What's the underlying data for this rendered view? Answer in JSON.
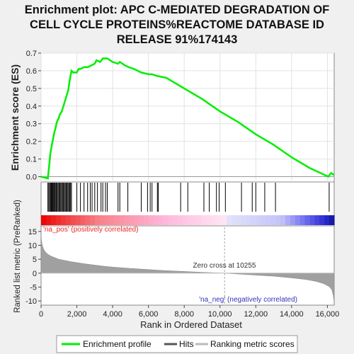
{
  "chart_data": {
    "type": "line",
    "title_lines": [
      "Enrichment plot: APC C-MEDIATED DEGRADATION OF",
      "CELL CYCLE PROTEINS%REACTOME DATABASE ID",
      "RELEASE 91%174143"
    ],
    "es_panel": {
      "ylabel": "Enrichment score (ES)",
      "ylim": [
        -0.03,
        0.7
      ],
      "yticks": [
        "0.0",
        "0.1",
        "0.2",
        "0.3",
        "0.4",
        "0.5",
        "0.6",
        "0.7"
      ],
      "ytick_values": [
        0.0,
        0.1,
        0.2,
        0.3,
        0.4,
        0.5,
        0.6,
        0.7
      ],
      "series": [
        {
          "name": "Enrichment profile",
          "color": "#00ee00",
          "x": [
            0,
            380,
            420,
            470,
            520,
            570,
            620,
            680,
            740,
            800,
            860,
            920,
            980,
            1040,
            1100,
            1160,
            1220,
            1280,
            1340,
            1400,
            1460,
            1520,
            1580,
            1640,
            1700,
            1800,
            2000,
            2100,
            2200,
            2400,
            2600,
            2800,
            3000,
            3100,
            3300,
            3450,
            3550,
            3700,
            4000,
            4300,
            4400,
            4700,
            4900,
            5200,
            5600,
            6000,
            6200,
            6500,
            7000,
            8000,
            9000,
            10000,
            11000,
            12000,
            13000,
            14000,
            15000,
            16050,
            16200,
            16380
          ],
          "values": [
            0.0,
            -0.01,
            0.03,
            0.08,
            0.13,
            0.16,
            0.19,
            0.22,
            0.25,
            0.27,
            0.3,
            0.32,
            0.33,
            0.35,
            0.36,
            0.37,
            0.39,
            0.41,
            0.43,
            0.45,
            0.47,
            0.49,
            0.53,
            0.57,
            0.6,
            0.59,
            0.59,
            0.61,
            0.61,
            0.62,
            0.62,
            0.63,
            0.64,
            0.66,
            0.65,
            0.67,
            0.67,
            0.67,
            0.65,
            0.64,
            0.65,
            0.63,
            0.62,
            0.61,
            0.59,
            0.58,
            0.58,
            0.57,
            0.56,
            0.5,
            0.44,
            0.37,
            0.31,
            0.24,
            0.18,
            0.11,
            0.05,
            0.0,
            0.02,
            0.01
          ]
        }
      ]
    },
    "hits_panel": {
      "legend_label": "Hits",
      "hit_positions": [
        380,
        430,
        480,
        530,
        570,
        610,
        640,
        680,
        720,
        760,
        800,
        850,
        900,
        950,
        1000,
        1050,
        1100,
        1150,
        1200,
        1250,
        1300,
        1350,
        1400,
        1450,
        1500,
        1550,
        1600,
        1650,
        1700,
        2000,
        2200,
        2400,
        2600,
        2750,
        2850,
        3000,
        3150,
        3350,
        3450,
        3600,
        3700,
        4300,
        4400,
        4850,
        5600,
        5950,
        6100,
        6200,
        6500,
        6550,
        7800,
        8200,
        9100,
        9400,
        9800,
        9950,
        10300,
        11200,
        11800,
        12000,
        12500,
        13100,
        16100
      ]
    },
    "metric_panel": {
      "ylabel": "Ranked list metric (PreRanked)",
      "xlabel": "Rank in Ordered Dataset",
      "legend_label": "Ranking metric scores",
      "ylim": [
        -11.5,
        17
      ],
      "yticks": [
        "15",
        "10",
        "5",
        "0",
        "-5",
        "-10"
      ],
      "ytick_values": [
        15,
        10,
        5,
        0,
        -5,
        -10
      ],
      "xlim": [
        0,
        16380
      ],
      "xticks": [
        "0",
        "2,000",
        "4,000",
        "6,000",
        "8,000",
        "10,000",
        "12,000",
        "14,000",
        "16,000"
      ],
      "xtick_values": [
        0,
        2000,
        4000,
        6000,
        8000,
        10000,
        12000,
        14000,
        16000
      ],
      "zero_cross_label": "Zero cross at 10255",
      "zero_cross": 10255,
      "pos_label": "'na_pos' (positively correlated)",
      "neg_label": "'na_neg' (negatively correlated)",
      "curve": {
        "x": [
          0,
          20,
          60,
          120,
          200,
          300,
          450,
          600,
          800,
          1000,
          1300,
          1600,
          2000,
          2500,
          3000,
          3500,
          4000,
          5000,
          6000,
          7000,
          8000,
          9000,
          9800,
          10255,
          11000,
          12000,
          13000,
          14000,
          14800,
          15400,
          15800,
          16100,
          16250,
          16330,
          16380
        ],
        "values": [
          15,
          12,
          10.3,
          9.0,
          8.0,
          7.2,
          6.5,
          6.0,
          5.5,
          5.0,
          4.6,
          4.2,
          3.8,
          3.3,
          2.9,
          2.5,
          2.2,
          1.7,
          1.3,
          0.9,
          0.6,
          0.3,
          0.1,
          0,
          -0.3,
          -0.7,
          -1.1,
          -1.7,
          -2.3,
          -3.0,
          -3.8,
          -4.8,
          -6.0,
          -8.0,
          -10.5
        ]
      }
    },
    "legend": {
      "items": [
        {
          "label": "Enrichment profile",
          "color": "#00ee00"
        },
        {
          "label": "Hits",
          "color": "#555555"
        },
        {
          "label": "Ranking metric scores",
          "color": "#bbbbbb"
        }
      ]
    },
    "colors": {
      "es_line": "#00ee00",
      "hit_line": "#000000",
      "metric_fill": "#a0a0a0",
      "pos_label": "#ee2222",
      "neg_label": "#3333bb"
    }
  }
}
